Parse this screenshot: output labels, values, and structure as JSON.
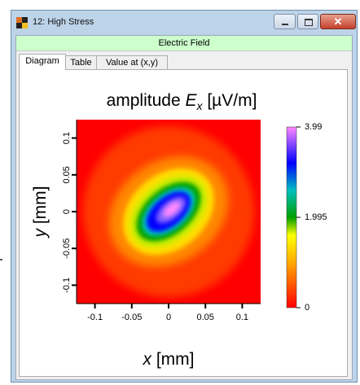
{
  "window": {
    "title": "12: High Stress",
    "close_glyph": "✕"
  },
  "banner": {
    "text": "Electric Field"
  },
  "tabs": [
    {
      "label": "Diagram",
      "active": true
    },
    {
      "label": "Table",
      "active": false
    },
    {
      "label": "Value at (x,y)",
      "active": false
    }
  ],
  "plot": {
    "title_prefix": "amplitude ",
    "title_symbol": "E",
    "title_subscript": "x",
    "title_unit": " [µV/m]",
    "x_label_symbol": "x",
    "x_label_unit": " [mm]",
    "y_label_symbol": "y",
    "y_label_unit": " [mm]",
    "x_ticks": [
      -0.1,
      -0.05,
      0,
      0.05,
      0.1
    ],
    "x_tick_labels": [
      "-0.1",
      "-0.05",
      "0",
      "0.05",
      "0.1"
    ],
    "y_ticks": [
      0.1,
      0.05,
      0,
      -0.05,
      -0.1
    ],
    "y_tick_labels": [
      "0.1",
      "0.05",
      "0",
      "-0.05",
      "-0.1"
    ],
    "range": [
      -0.125,
      0.125
    ],
    "colorbar": {
      "ticks": [
        3.99,
        1.995,
        0
      ],
      "tick_labels": [
        "3.99",
        "1.995",
        "0"
      ],
      "min": 0,
      "max": 3.99
    }
  },
  "chart_data": {
    "type": "heatmap",
    "title": "amplitude Ex [µV/m]",
    "xlabel": "x [mm]",
    "ylabel": "y [mm]",
    "xlim": [
      -0.125,
      0.125
    ],
    "ylim": [
      -0.125,
      0.125
    ],
    "zlim": [
      0,
      3.99
    ],
    "colormap": [
      "#ff0000",
      "#ffff00",
      "#00a000",
      "#0000ff",
      "#ff88ff"
    ],
    "legend": "right colorbar"
  },
  "colors": {
    "map_low": "#ff0000",
    "map_mid_low": "#ffff00",
    "map_mid": "#00a000",
    "map_mid_high": "#0000ff",
    "map_high": "#ff88ff",
    "banner_bg": "#ccffcc",
    "window_frame": "#bcd3e8",
    "close_button": "#c4402c"
  },
  "icons": {
    "app": "checkerboard-app-icon",
    "minimize": "minimize-icon",
    "maximize": "maximize-icon",
    "close": "close-icon"
  }
}
